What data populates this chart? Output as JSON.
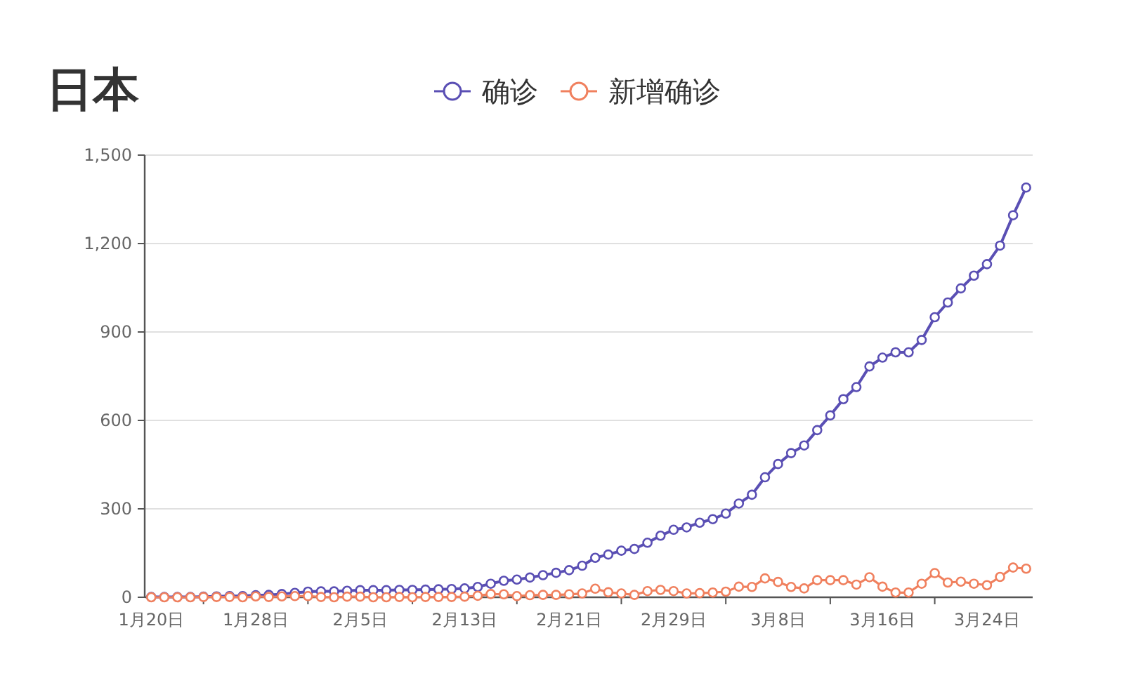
{
  "chart_data": {
    "type": "line",
    "title": "日本",
    "categories": [
      "1月20日",
      null,
      null,
      null,
      null,
      null,
      null,
      null,
      "1月28日",
      null,
      null,
      null,
      null,
      null,
      null,
      null,
      "2月5日",
      null,
      null,
      null,
      null,
      null,
      null,
      null,
      "2月13日",
      null,
      null,
      null,
      null,
      null,
      null,
      null,
      "2月21日",
      null,
      null,
      null,
      null,
      null,
      null,
      null,
      "2月29日",
      null,
      null,
      null,
      null,
      null,
      null,
      null,
      "3月8日",
      null,
      null,
      null,
      null,
      null,
      null,
      null,
      "3月16日",
      null,
      null,
      null,
      null,
      null,
      null,
      null,
      "3月24日",
      null,
      null,
      null
    ],
    "series": [
      {
        "name": "确诊",
        "color": "#5a4fb4",
        "values": [
          1,
          1,
          1,
          1,
          2,
          3,
          4,
          4,
          7,
          8,
          11,
          15,
          19,
          20,
          20,
          22,
          24,
          24,
          24,
          25,
          25,
          26,
          27,
          28,
          30,
          35,
          46,
          56,
          60,
          67,
          75,
          83,
          92,
          107,
          134,
          145,
          158,
          164,
          185,
          209,
          229,
          237,
          253,
          265,
          284,
          318,
          348,
          407,
          452,
          489,
          515,
          567,
          617,
          672,
          713,
          783,
          813,
          831,
          831,
          873,
          950,
          1000,
          1048,
          1091,
          1130,
          1193,
          1296,
          1390
        ]
      },
      {
        "name": "新增确诊",
        "color": "#f0805e",
        "values": [
          0,
          0,
          0,
          0,
          1,
          1,
          1,
          0,
          3,
          1,
          3,
          4,
          4,
          1,
          0,
          2,
          2,
          0,
          0,
          1,
          0,
          1,
          1,
          1,
          2,
          5,
          11,
          10,
          4,
          7,
          8,
          8,
          10,
          13,
          29,
          17,
          13,
          8,
          21,
          25,
          21,
          13,
          14,
          16,
          19,
          36,
          35,
          64,
          52,
          35,
          30,
          58,
          58,
          58,
          43,
          68,
          36,
          16,
          16,
          46,
          82,
          50,
          53,
          46,
          41,
          69,
          101,
          97
        ]
      }
    ],
    "ylim": [
      0,
      1500
    ],
    "yticks": [
      0,
      300,
      600,
      900,
      {
        "value": 1200,
        "label": "1,200"
      },
      {
        "value": 1500,
        "label": "1,500"
      }
    ],
    "grid": "y",
    "legend": "top",
    "marker": "circle"
  }
}
